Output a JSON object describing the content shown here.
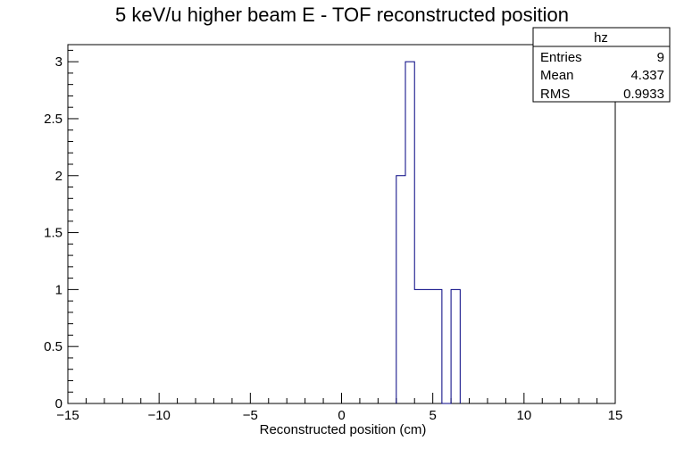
{
  "chart_data": {
    "type": "histogram",
    "title": "5 keV/u higher beam E - TOF reconstructed position",
    "xlabel": "Reconstructed position (cm)",
    "ylabel": "",
    "xlim": [
      -15,
      15
    ],
    "ylim": [
      0,
      3.15
    ],
    "x_ticks": [
      -15,
      -10,
      -5,
      0,
      5,
      10,
      15
    ],
    "x_tick_labels": [
      "−15",
      "−10",
      "−5",
      "0",
      "5",
      "10",
      "15"
    ],
    "y_ticks": [
      0,
      0.5,
      1,
      1.5,
      2,
      2.5,
      3
    ],
    "y_tick_labels": [
      "0",
      "0.5",
      "1",
      "1.5",
      "2",
      "2.5",
      "3"
    ],
    "bin_width": 0.5,
    "bins": [
      {
        "x_low": 3.0,
        "x_high": 3.5,
        "value": 2
      },
      {
        "x_low": 3.5,
        "x_high": 4.0,
        "value": 3
      },
      {
        "x_low": 4.0,
        "x_high": 4.5,
        "value": 1
      },
      {
        "x_low": 4.5,
        "x_high": 5.0,
        "value": 1
      },
      {
        "x_low": 5.0,
        "x_high": 5.5,
        "value": 1
      },
      {
        "x_low": 5.5,
        "x_high": 6.0,
        "value": 0
      },
      {
        "x_low": 6.0,
        "x_high": 6.5,
        "value": 1
      }
    ],
    "line_color": "#000080",
    "grid": false,
    "stats_box": {
      "name": "hz",
      "placement": "top-right",
      "rows": [
        {
          "label": "Entries",
          "value": "9"
        },
        {
          "label": "Mean",
          "value": "4.337"
        },
        {
          "label": "RMS",
          "value": "0.9933"
        }
      ]
    }
  }
}
